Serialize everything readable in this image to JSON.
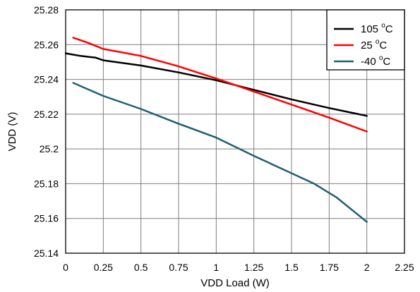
{
  "chart_data": {
    "type": "line",
    "title": "",
    "xlabel": "VDD Load (W)",
    "ylabel": "VDD (V)",
    "xlim": [
      0,
      2.25
    ],
    "ylim": [
      25.14,
      25.28
    ],
    "grid": true,
    "legend_position": "top-right",
    "x_ticks": [
      0,
      0.25,
      0.5,
      0.75,
      1,
      1.25,
      1.5,
      1.75,
      2,
      2.25
    ],
    "x_tick_labels": [
      "0",
      "0.25",
      "0.5",
      "0.75",
      "1",
      "1.25",
      "1.5",
      "1.75",
      "2",
      "2.25"
    ],
    "y_ticks": [
      25.14,
      25.16,
      25.18,
      25.2,
      25.22,
      25.24,
      25.26,
      25.28
    ],
    "y_tick_labels": [
      "25.14",
      "25.16",
      "25.18",
      "25.2",
      "25.22",
      "25.24",
      "25.26",
      "25.28"
    ],
    "series": [
      {
        "name": "105 °C",
        "label_main": "105 ",
        "label_sup": "o",
        "label_unit": "C",
        "color": "#000000",
        "x": [
          0,
          0.1,
          0.2,
          0.25,
          0.5,
          0.75,
          1.0,
          1.25,
          1.5,
          1.75,
          2.0
        ],
        "y": [
          25.255,
          25.2535,
          25.2525,
          25.251,
          25.248,
          25.244,
          25.2395,
          25.234,
          25.2285,
          25.2235,
          25.219
        ]
      },
      {
        "name": "25 °C",
        "label_main": "25 ",
        "label_sup": "o",
        "label_unit": "C",
        "color": "#ff0000",
        "x": [
          0.05,
          0.15,
          0.25,
          0.5,
          0.75,
          1.0,
          1.25,
          1.5,
          1.75,
          2.0
        ],
        "y": [
          25.264,
          25.261,
          25.2575,
          25.2535,
          25.2475,
          25.2405,
          25.233,
          25.2255,
          25.218,
          25.21
        ]
      },
      {
        "name": "-40 °C",
        "label_main": "-40 ",
        "label_sup": "o",
        "label_unit": "C",
        "color": "#1f5f73",
        "x": [
          0.05,
          0.25,
          0.5,
          0.75,
          1.0,
          1.25,
          1.5,
          1.65,
          1.8,
          2.0
        ],
        "y": [
          25.238,
          25.2305,
          25.223,
          25.2145,
          25.2065,
          25.196,
          25.186,
          25.18,
          25.172,
          25.158
        ]
      }
    ]
  }
}
